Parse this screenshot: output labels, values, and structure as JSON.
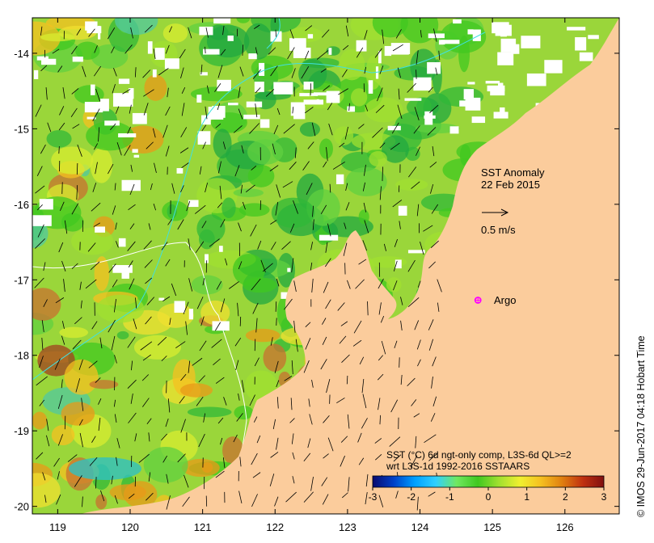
{
  "map": {
    "title_line1": "SST Anomaly",
    "title_line2": "22 Feb 2015",
    "vector_scale_label": "0.5 m/s",
    "float_label": "Argo",
    "float_lon": 124.8,
    "float_lat": -17.27,
    "extent": {
      "lon_min": 118.65,
      "lon_max": 126.75,
      "lat_min": -20.1,
      "lat_max": -13.53
    },
    "x_ticks": [
      "119",
      "120",
      "121",
      "122",
      "123",
      "124",
      "125",
      "126"
    ],
    "y_ticks": [
      "-14",
      "-15",
      "-16",
      "-17",
      "-18",
      "-19",
      "-20"
    ],
    "x_tick_values": [
      119,
      120,
      121,
      122,
      123,
      124,
      125,
      126
    ],
    "y_tick_values": [
      -14,
      -15,
      -16,
      -17,
      -18,
      -19,
      -20
    ],
    "land_color": "#fbcc9c",
    "float_color": "#ff00ff",
    "contour_color": "#40e0e0"
  },
  "legend": {
    "line1": "SST (°C) 6d ngt-only comp, L3S-6d QL>=2",
    "line2": "wrt L3S-1d 1992-2016 SSTAARS",
    "ticks": [
      "-3",
      "-2",
      "-1",
      "0",
      "1",
      "2",
      "3"
    ],
    "tick_values": [
      -3,
      -2,
      -1,
      0,
      1,
      2,
      3
    ],
    "colors": [
      "#0a0a6e",
      "#0040c8",
      "#00a0ff",
      "#30d0ff",
      "#70e860",
      "#40c820",
      "#a0e030",
      "#f0f030",
      "#f5c020",
      "#e08010",
      "#c03010",
      "#801010"
    ]
  },
  "credit": {
    "text": "© IMOS 29-Jun-2017 04:18 Hobart Time"
  }
}
